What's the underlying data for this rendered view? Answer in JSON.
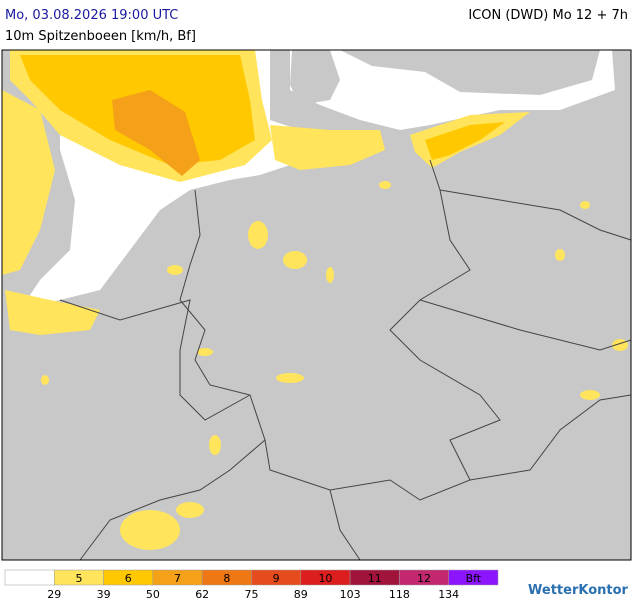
{
  "header": {
    "title": "Mo, 03.08.2026 19:00 UTC",
    "model": "ICON (DWD) Mo 12 + 7h",
    "subtitle": "10m Spitzenboeen [km/h, Bf]"
  },
  "legend": {
    "classes": [
      {
        "label": "",
        "color": "#ffffff"
      },
      {
        "label": "5",
        "color": "#ffe45c"
      },
      {
        "label": "6",
        "color": "#ffc800"
      },
      {
        "label": "7",
        "color": "#f5a019"
      },
      {
        "label": "8",
        "color": "#f07814"
      },
      {
        "label": "9",
        "color": "#e64b1e"
      },
      {
        "label": "10",
        "color": "#dc1e1e"
      },
      {
        "label": "11",
        "color": "#a0143c"
      },
      {
        "label": "12",
        "color": "#c3286e"
      },
      {
        "label": "Bft",
        "color": "#8c14ff"
      }
    ],
    "thresholds": [
      "29",
      "39",
      "50",
      "62",
      "75",
      "89",
      "103",
      "118",
      "134"
    ]
  },
  "brand": "WetterKontor"
}
